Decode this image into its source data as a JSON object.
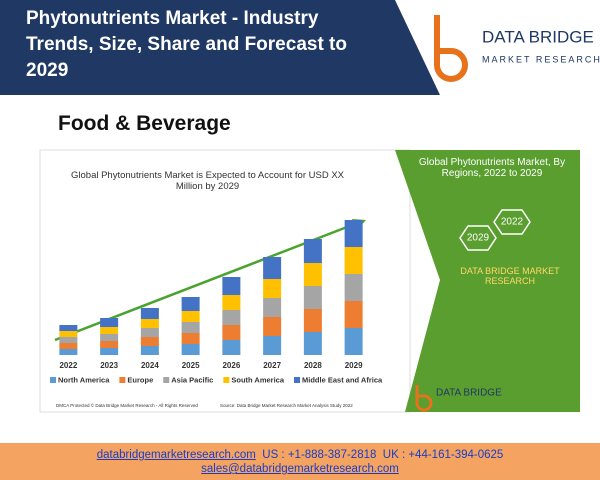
{
  "header": {
    "title": "Phytonutrients Market - Industry Trends, Size, Share and Forecast to 2029",
    "logo_name": "DATA BRIDGE",
    "logo_tagline": "MARKET RESEARCH"
  },
  "section_title": "Food & Beverage",
  "chart_data": {
    "type": "bar",
    "stacked": true,
    "title": "Global Phytonutrients Market is Expected to Account for USD XX Million by 2029",
    "categories": [
      "2022",
      "2023",
      "2024",
      "2025",
      "2026",
      "2027",
      "2028",
      "2029"
    ],
    "series": [
      {
        "name": "North America",
        "color": "#5b9bd5",
        "values": [
          6,
          7,
          9,
          11,
          15,
          19,
          23,
          27
        ]
      },
      {
        "name": "Europe",
        "color": "#ed7d31",
        "values": [
          6,
          7,
          9,
          11,
          15,
          19,
          23,
          27
        ]
      },
      {
        "name": "Asia Pacific",
        "color": "#a5a5a5",
        "values": [
          6,
          7,
          9,
          11,
          15,
          19,
          23,
          27
        ]
      },
      {
        "name": "South America",
        "color": "#ffc000",
        "values": [
          6,
          7,
          9,
          11,
          15,
          19,
          23,
          27
        ]
      },
      {
        "name": "Middle East and Africa",
        "color": "#4472c4",
        "values": [
          6,
          9,
          11,
          14,
          18,
          22,
          24,
          27
        ]
      }
    ]
  },
  "side_panel": {
    "title": "Global Phytonutrients Market, By Regions, 2022 to 2029",
    "badges": [
      "2029",
      "2022"
    ],
    "brand": "DATA BRIDGE MARKET RESEARCH",
    "logo": "DATA BRIDGE"
  },
  "footnotes": {
    "left": "DMCA Protected © Data Bridge Market Research - All Rights Reserved",
    "right": "Source: Data Bridge Market Research Market Analysis Study 2022"
  },
  "footer": {
    "website": "databridgemarketresearch.com",
    "us": "US : +1-888-387-2818",
    "uk": "UK : +44-161-394-0625",
    "email": "sales@databridgemarketresearch.com"
  }
}
